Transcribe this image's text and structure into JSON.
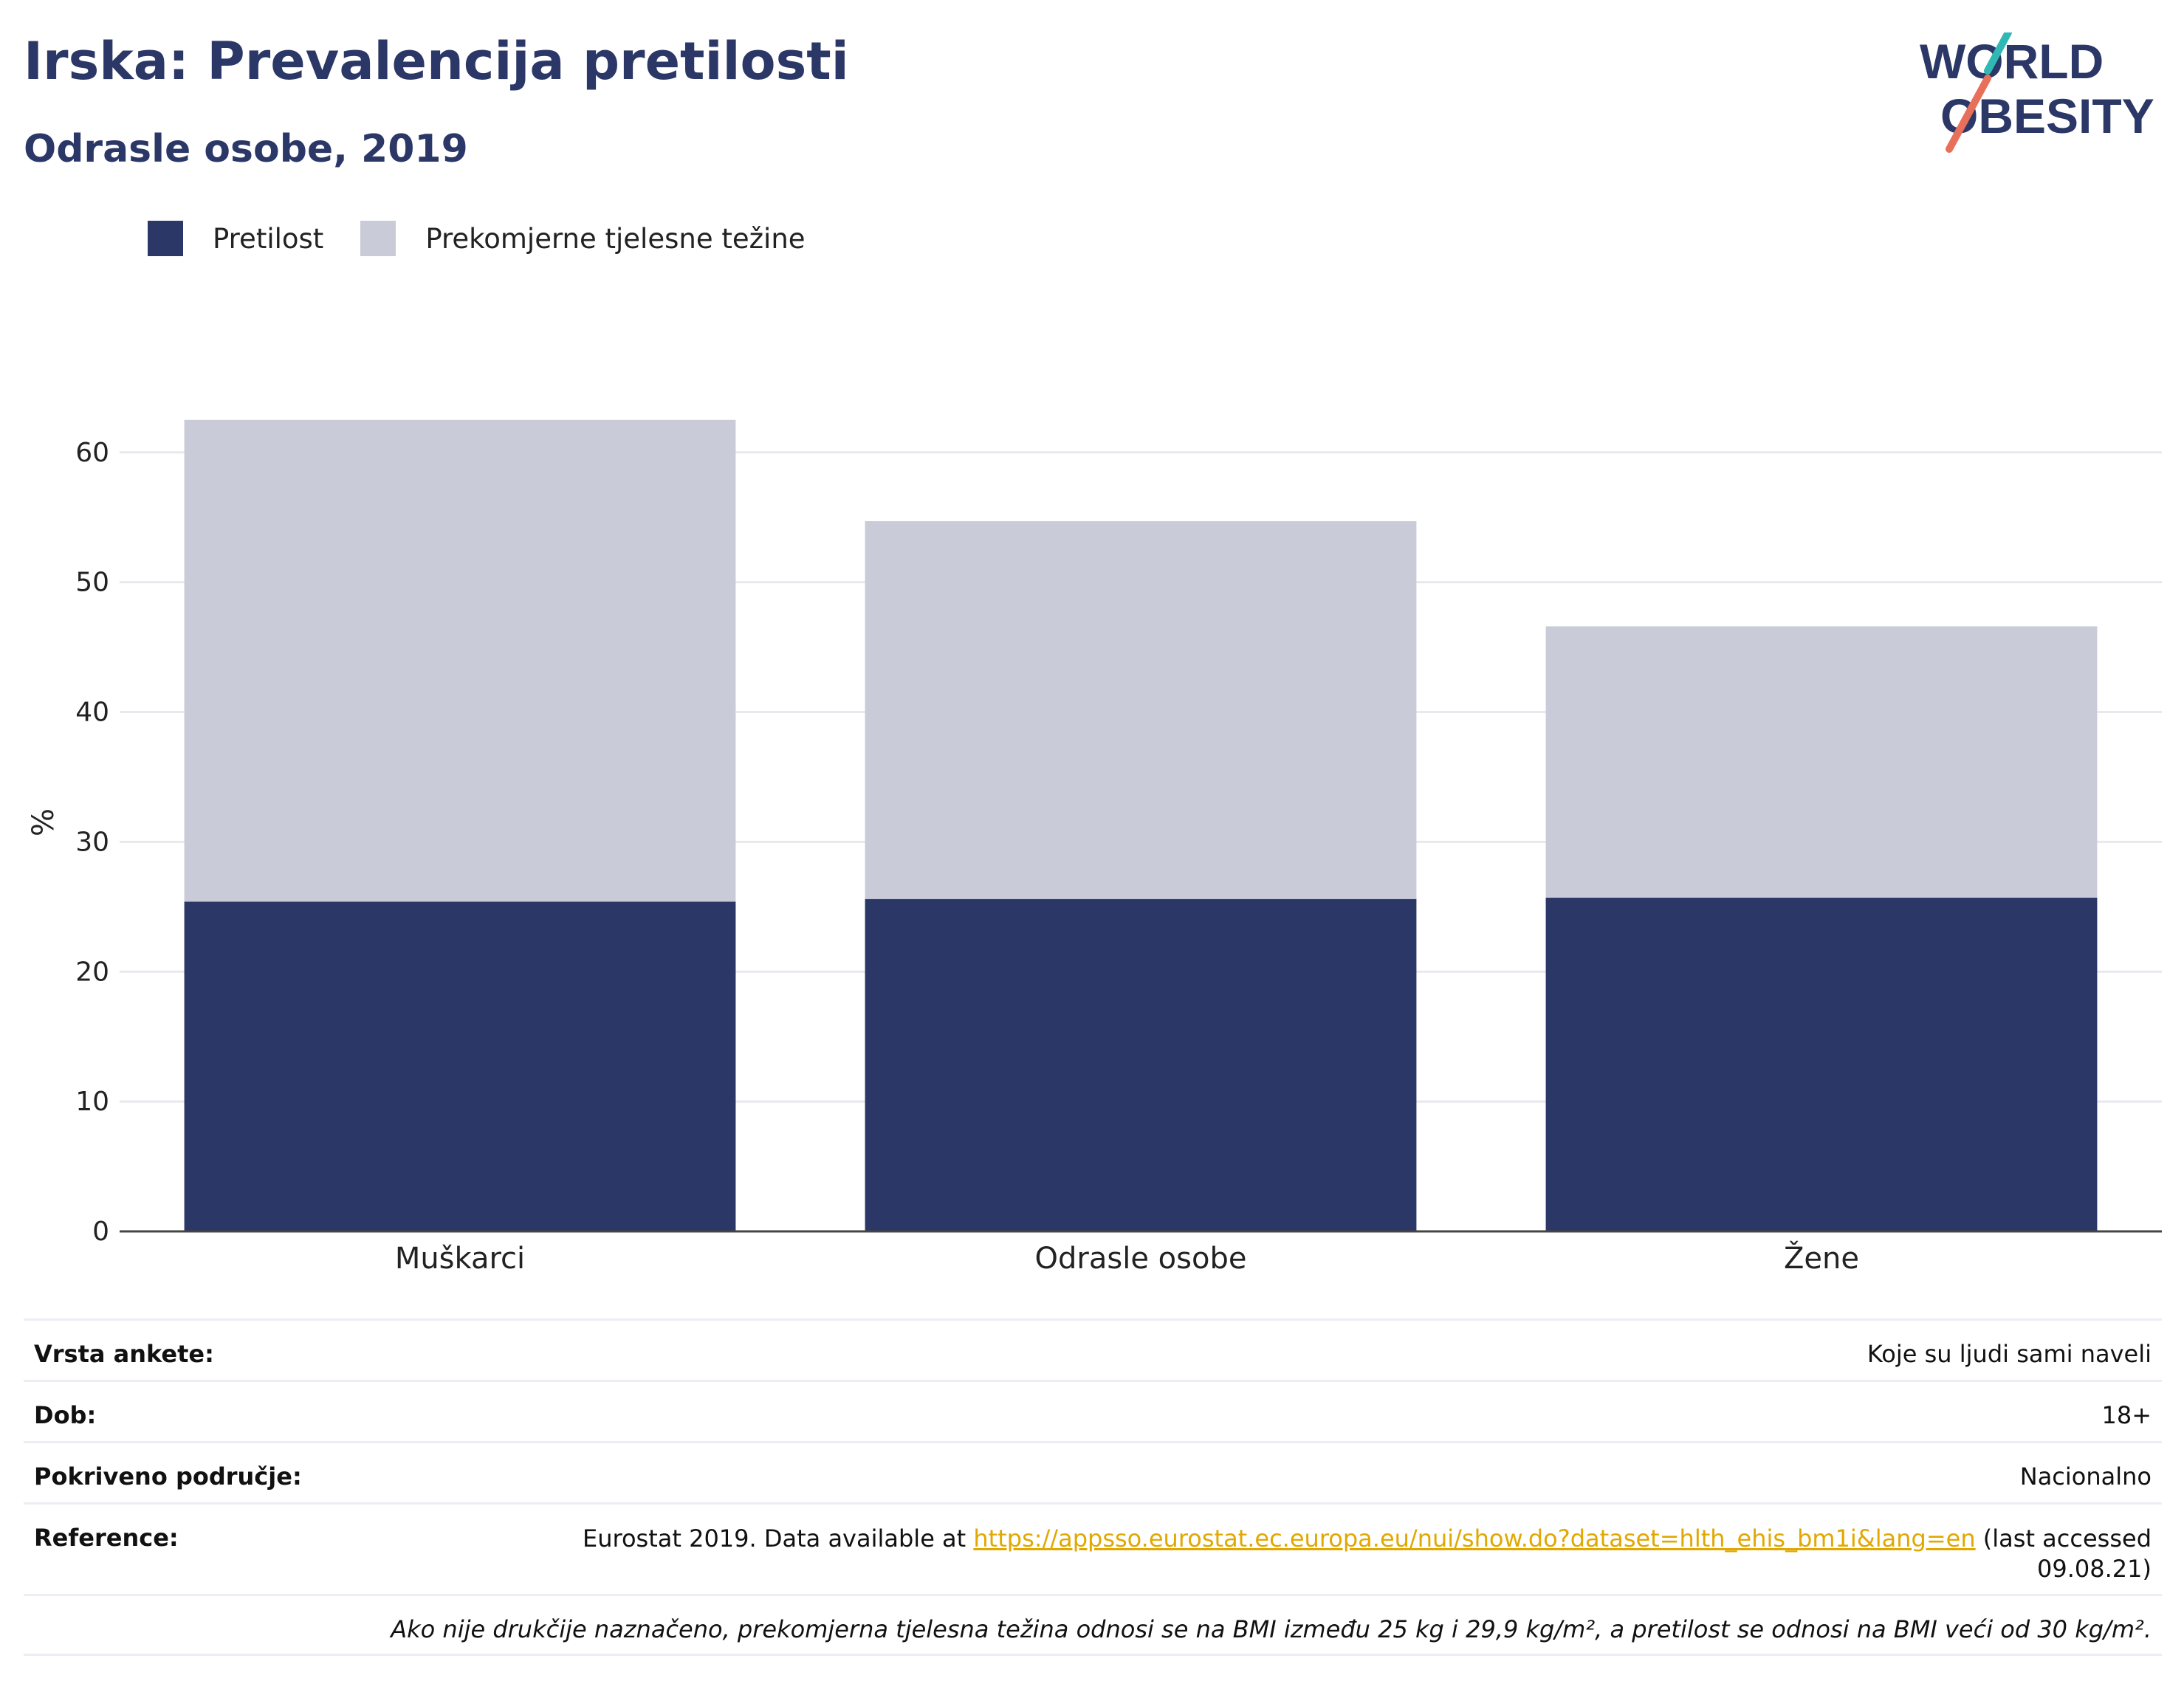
{
  "header": {
    "title": "Irska: Prevalencija pretilosti",
    "subtitle": "Odrasle osobe, 2019"
  },
  "logo": {
    "line1": "WORLD",
    "line2": "OBESITY"
  },
  "colors": {
    "obesity": "#2b3766",
    "overweight": "#c9ccd8",
    "title": "#2b3766",
    "link": "#e0a800",
    "grid": "#e8e8ee"
  },
  "legend": [
    {
      "label": "Pretilost",
      "color": "#2b3766"
    },
    {
      "label": "Prekomjerne tjelesne težine",
      "color": "#c9ccd8"
    }
  ],
  "chart_data": {
    "type": "bar",
    "stacked": true,
    "categories": [
      "Muškarci",
      "Odrasle osobe",
      "Žene"
    ],
    "series": [
      {
        "name": "Pretilost",
        "values": [
          25.4,
          25.6,
          25.7
        ]
      },
      {
        "name": "Prekomjerne tjelesne težine",
        "values": [
          37.1,
          29.1,
          20.9
        ]
      }
    ],
    "ylabel": "%",
    "ylim": [
      0,
      63
    ],
    "yticks": [
      0,
      10,
      20,
      30,
      40,
      50,
      60
    ],
    "grid": true,
    "legend_position": "top-left"
  },
  "info": {
    "survey_type_label": "Vrsta ankete:",
    "survey_type_value": "Koje su ljudi sami naveli",
    "age_label": "Dob:",
    "age_value": "18+",
    "coverage_label": "Pokriveno područje:",
    "coverage_value": "Nacionalno",
    "reference_label": "Reference:",
    "reference_prefix": "Eurostat 2019. Data available at ",
    "reference_link": "https://appsso.eurostat.ec.europa.eu/nui/show.do?dataset=hlth_ehis_bm1i&lang=en",
    "reference_suffix": " (last accessed 09.08.21)",
    "note": "Ako nije drukčije naznačeno, prekomjerna tjelesna težina odnosi se na BMI između 25 kg i 29,9 kg/m², a pretilost se odnosi na BMI veći od 30 kg/m²."
  }
}
